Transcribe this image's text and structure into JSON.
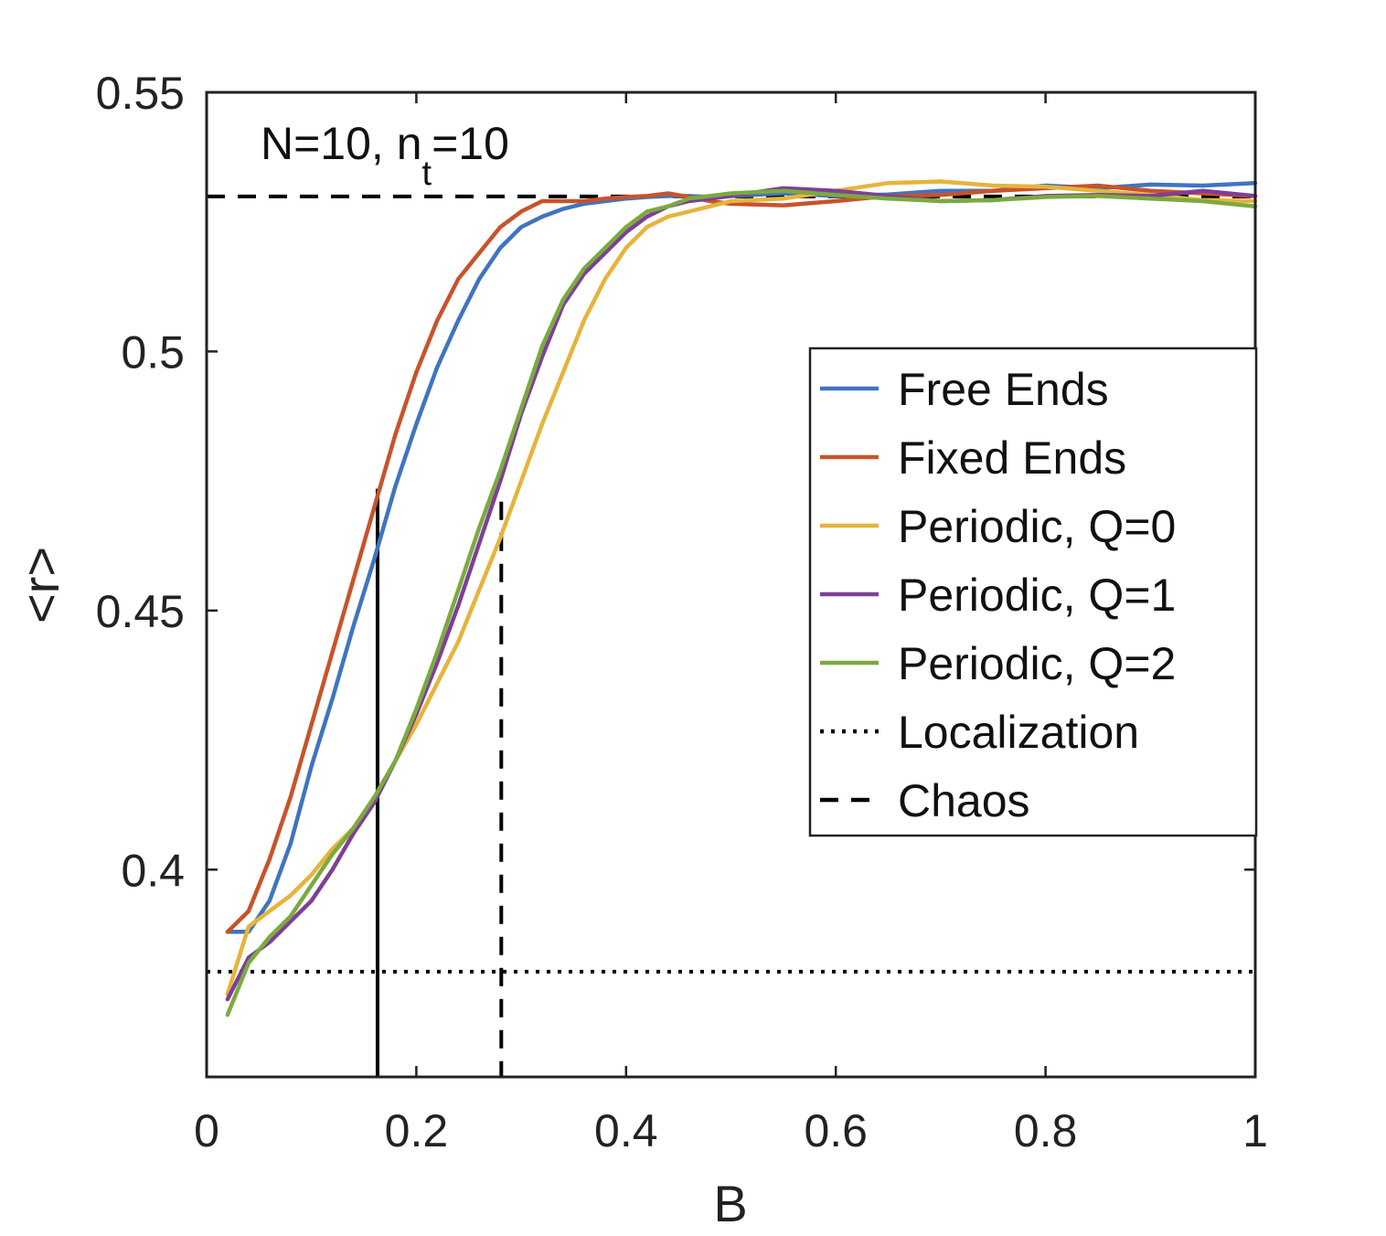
{
  "chart_data": {
    "type": "line",
    "annotation": "N=10, n",
    "annotation_sub": "t",
    "annotation_tail": "=10",
    "xlabel": "B",
    "ylabel": "<r>",
    "xlim": [
      0,
      1
    ],
    "ylim": [
      0.36,
      0.55
    ],
    "xticks": [
      0,
      0.2,
      0.4,
      0.6,
      0.8,
      1
    ],
    "xtick_labels": [
      "0",
      "0.2",
      "0.4",
      "0.6",
      "0.8",
      "1"
    ],
    "yticks": [
      0.4,
      0.45,
      0.5,
      0.55
    ],
    "ytick_labels": [
      "0.4",
      "0.45",
      "0.5",
      "0.55"
    ],
    "legend_position": "middle-right",
    "series": [
      {
        "name": "Free Ends",
        "color": "#3F74C0",
        "x": [
          0.02,
          0.04,
          0.06,
          0.08,
          0.1,
          0.12,
          0.14,
          0.16,
          0.18,
          0.2,
          0.22,
          0.24,
          0.26,
          0.28,
          0.3,
          0.32,
          0.34,
          0.36,
          0.38,
          0.4,
          0.42,
          0.44,
          0.46,
          0.48,
          0.5,
          0.55,
          0.6,
          0.65,
          0.7,
          0.75,
          0.8,
          0.85,
          0.9,
          0.95,
          1.0
        ],
        "y": [
          0.388,
          0.388,
          0.394,
          0.405,
          0.42,
          0.433,
          0.447,
          0.46,
          0.474,
          0.486,
          0.497,
          0.506,
          0.514,
          0.52,
          0.524,
          0.526,
          0.5275,
          0.5285,
          0.529,
          0.5295,
          0.5298,
          0.53,
          0.53,
          0.5298,
          0.53,
          0.5305,
          0.53,
          0.5303,
          0.531,
          0.531,
          0.532,
          0.5315,
          0.5322,
          0.532,
          0.5325
        ]
      },
      {
        "name": "Fixed Ends",
        "color": "#C8532A",
        "x": [
          0.02,
          0.04,
          0.06,
          0.08,
          0.1,
          0.12,
          0.14,
          0.16,
          0.18,
          0.2,
          0.22,
          0.24,
          0.26,
          0.28,
          0.3,
          0.32,
          0.34,
          0.36,
          0.38,
          0.4,
          0.42,
          0.44,
          0.46,
          0.48,
          0.5,
          0.55,
          0.6,
          0.65,
          0.7,
          0.75,
          0.8,
          0.85,
          0.9,
          0.95,
          1.0
        ],
        "y": [
          0.388,
          0.392,
          0.402,
          0.414,
          0.428,
          0.442,
          0.456,
          0.47,
          0.484,
          0.496,
          0.506,
          0.514,
          0.519,
          0.524,
          0.527,
          0.529,
          0.529,
          0.529,
          0.5295,
          0.5298,
          0.53,
          0.5305,
          0.5298,
          0.529,
          0.5285,
          0.5282,
          0.529,
          0.53,
          0.5302,
          0.531,
          0.5315,
          0.532,
          0.531,
          0.5305,
          0.53
        ]
      },
      {
        "name": "Periodic, Q=0",
        "color": "#E6B43C",
        "x": [
          0.02,
          0.04,
          0.06,
          0.08,
          0.1,
          0.12,
          0.14,
          0.16,
          0.18,
          0.2,
          0.22,
          0.24,
          0.26,
          0.28,
          0.3,
          0.32,
          0.34,
          0.36,
          0.38,
          0.4,
          0.42,
          0.44,
          0.46,
          0.48,
          0.5,
          0.55,
          0.6,
          0.65,
          0.7,
          0.75,
          0.8,
          0.85,
          0.9,
          0.95,
          1.0
        ],
        "y": [
          0.376,
          0.389,
          0.392,
          0.395,
          0.399,
          0.404,
          0.408,
          0.414,
          0.421,
          0.428,
          0.436,
          0.444,
          0.454,
          0.464,
          0.475,
          0.486,
          0.496,
          0.506,
          0.514,
          0.52,
          0.524,
          0.526,
          0.527,
          0.528,
          0.529,
          0.5295,
          0.531,
          0.5325,
          0.5328,
          0.532,
          0.5318,
          0.531,
          0.5302,
          0.5292,
          0.529
        ]
      },
      {
        "name": "Periodic, Q=1",
        "color": "#7E3F98",
        "x": [
          0.02,
          0.04,
          0.06,
          0.08,
          0.1,
          0.12,
          0.14,
          0.16,
          0.18,
          0.2,
          0.22,
          0.24,
          0.26,
          0.28,
          0.3,
          0.32,
          0.34,
          0.36,
          0.38,
          0.4,
          0.42,
          0.44,
          0.46,
          0.48,
          0.5,
          0.55,
          0.6,
          0.65,
          0.7,
          0.75,
          0.8,
          0.85,
          0.9,
          0.95,
          1.0
        ],
        "y": [
          0.375,
          0.383,
          0.386,
          0.39,
          0.394,
          0.4,
          0.407,
          0.413,
          0.421,
          0.43,
          0.44,
          0.451,
          0.463,
          0.475,
          0.488,
          0.499,
          0.509,
          0.515,
          0.519,
          0.523,
          0.526,
          0.528,
          0.529,
          0.5295,
          0.53,
          0.5315,
          0.531,
          0.53,
          0.529,
          0.5292,
          0.53,
          0.5302,
          0.53,
          0.531,
          0.53
        ]
      },
      {
        "name": "Periodic, Q=2",
        "color": "#7BAA3F",
        "x": [
          0.02,
          0.04,
          0.06,
          0.08,
          0.1,
          0.12,
          0.14,
          0.16,
          0.18,
          0.2,
          0.22,
          0.24,
          0.26,
          0.28,
          0.3,
          0.32,
          0.34,
          0.36,
          0.38,
          0.4,
          0.42,
          0.44,
          0.46,
          0.48,
          0.5,
          0.55,
          0.6,
          0.65,
          0.7,
          0.75,
          0.8,
          0.85,
          0.9,
          0.95,
          1.0
        ],
        "y": [
          0.372,
          0.382,
          0.387,
          0.391,
          0.397,
          0.403,
          0.408,
          0.414,
          0.421,
          0.431,
          0.442,
          0.454,
          0.466,
          0.477,
          0.489,
          0.501,
          0.51,
          0.516,
          0.52,
          0.524,
          0.527,
          0.528,
          0.5295,
          0.53,
          0.5305,
          0.531,
          0.5302,
          0.5295,
          0.529,
          0.5292,
          0.5298,
          0.53,
          0.5295,
          0.529,
          0.528
        ]
      },
      {
        "name": "Localization",
        "color": "#000000",
        "style": "dotted",
        "y_constant": 0.3803
      },
      {
        "name": "Chaos",
        "color": "#000000",
        "style": "dashed",
        "y_constant": 0.5299
      }
    ],
    "vertical_markers": [
      {
        "x": 0.163,
        "y_top": 0.4735,
        "style": "solid",
        "color": "#000000"
      },
      {
        "x": 0.281,
        "y_top": 0.471,
        "style": "dashed",
        "color": "#000000"
      }
    ]
  }
}
